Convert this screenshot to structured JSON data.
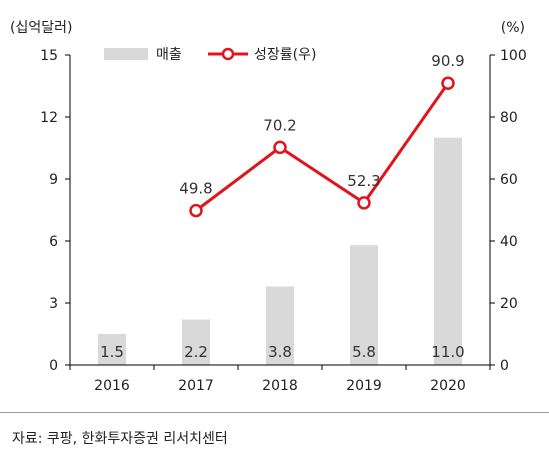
{
  "chart_data": {
    "type": "bar+line",
    "categories": [
      "2016",
      "2017",
      "2018",
      "2019",
      "2020"
    ],
    "series": [
      {
        "name": "매출",
        "type": "bar",
        "axis": "left",
        "values": [
          1.5,
          2.2,
          3.8,
          5.8,
          11.0
        ],
        "labels": [
          "1.5",
          "2.2",
          "3.8",
          "5.8",
          "11.0"
        ],
        "color": "#d9d9d9"
      },
      {
        "name": "성장률(우)",
        "type": "line",
        "axis": "right",
        "values": [
          null,
          49.8,
          70.2,
          52.3,
          90.9
        ],
        "labels": [
          "",
          "49.8",
          "70.2",
          "52.3",
          "90.9"
        ],
        "color": "#e0151b"
      }
    ],
    "left_axis": {
      "unit": "(십억달러)",
      "range": [
        0,
        15
      ],
      "ticks": [
        0,
        3,
        6,
        9,
        12,
        15
      ]
    },
    "right_axis": {
      "unit": "(%)",
      "range": [
        0,
        100
      ],
      "ticks": [
        0,
        20,
        40,
        60,
        80,
        100
      ]
    },
    "legend": {
      "position": "top-center"
    },
    "grid": false
  },
  "source": "자료: 쿠팡, 한화투자증권 리서치센터"
}
